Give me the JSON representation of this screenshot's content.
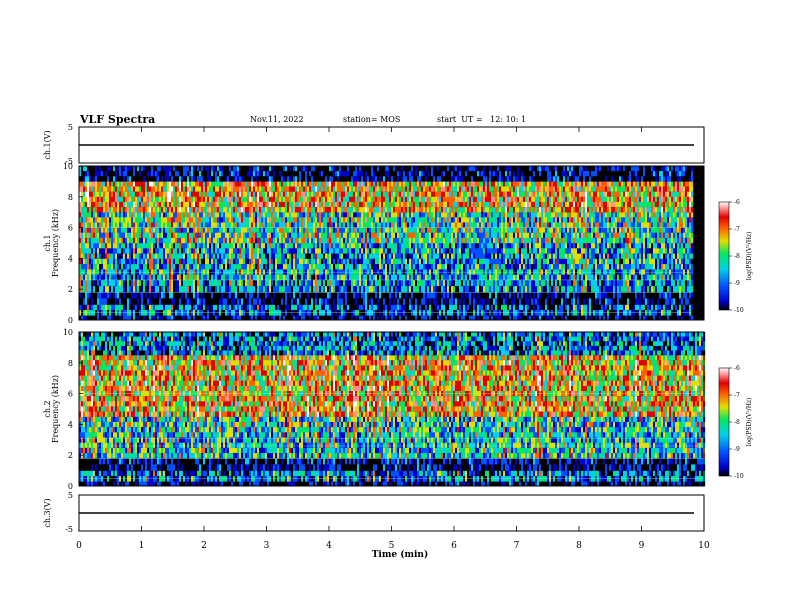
{
  "header": {
    "title": "VLF Spectra",
    "date": "Nov.11, 2022",
    "station": "station= MOS",
    "start_time": "start  UT =   12: 10: 1"
  },
  "chart_data": [
    {
      "type": "line",
      "panel": "ch1-waveform",
      "ylabel": "ch.1(V)",
      "ylim": [
        -5,
        5
      ],
      "yticks": [
        "5",
        "-5"
      ],
      "xlim": [
        0,
        10
      ],
      "series": [
        {
          "values": [
            0,
            0
          ]
        }
      ]
    },
    {
      "type": "heatmap",
      "panel": "ch1-spectrogram",
      "ylabel_line1": "ch.1",
      "ylabel_line2": "Frequency (kHz)",
      "ylim": [
        0,
        10
      ],
      "yticks": [
        "0",
        "2",
        "4",
        "6",
        "8",
        "10"
      ],
      "xlim": [
        0,
        10
      ],
      "note_data_extent_min": 9.8,
      "colorbar": {
        "label": "log(PSD)(V²/Hz)",
        "range": [
          -10,
          -6
        ],
        "ticks": [
          "-6",
          "-7",
          "-8",
          "-9",
          "-10"
        ]
      },
      "bands_khz": [
        {
          "range": [
            0.0,
            0.3
          ],
          "level": -10
        },
        {
          "range": [
            0.3,
            1.0
          ],
          "level": -9.3
        },
        {
          "range": [
            1.0,
            1.8
          ],
          "level": -9.9
        },
        {
          "range": [
            1.8,
            2.6
          ],
          "level": -9.0
        },
        {
          "range": [
            2.6,
            5.0
          ],
          "level": -8.8
        },
        {
          "range": [
            5.0,
            7.0
          ],
          "level": -8.4
        },
        {
          "range": [
            7.0,
            9.0
          ],
          "level": -7.6
        },
        {
          "range": [
            9.0,
            10.0
          ],
          "level": -9.9
        }
      ]
    },
    {
      "type": "heatmap",
      "panel": "ch2-spectrogram",
      "ylabel_line1": "ch.2",
      "ylabel_line2": "Frequency (kHz)",
      "ylim": [
        0,
        10
      ],
      "yticks": [
        "0",
        "2",
        "4",
        "6",
        "8",
        "10"
      ],
      "xlim": [
        0,
        10
      ],
      "colorbar": {
        "label": "log(PSD)(V²/Hz)",
        "range": [
          -10,
          -6
        ],
        "ticks": [
          "-6",
          "-7",
          "-8",
          "-9",
          "-10"
        ]
      },
      "bands_khz": [
        {
          "range": [
            0.0,
            0.3
          ],
          "level": -10
        },
        {
          "range": [
            0.3,
            1.0
          ],
          "level": -9.2
        },
        {
          "range": [
            1.0,
            1.8
          ],
          "level": -9.9
        },
        {
          "range": [
            1.8,
            4.5
          ],
          "level": -8.6
        },
        {
          "range": [
            4.5,
            8.5
          ],
          "level": -7.6
        },
        {
          "range": [
            8.5,
            10.0
          ],
          "level": -9.2
        }
      ]
    },
    {
      "type": "line",
      "panel": "ch3-waveform",
      "ylabel": "ch.3(V)",
      "ylim": [
        -5,
        5
      ],
      "yticks": [
        "5",
        "-5"
      ],
      "xlim": [
        0,
        10
      ],
      "series": [
        {
          "values": [
            0,
            0
          ]
        }
      ]
    }
  ],
  "xaxis": {
    "label": "Time  (min)",
    "ticks": [
      "0",
      "1",
      "2",
      "3",
      "4",
      "5",
      "6",
      "7",
      "8",
      "9",
      "10"
    ]
  },
  "colormap": [
    "#000000",
    "#0000c8",
    "#0050ff",
    "#00d0e8",
    "#00e860",
    "#e0e000",
    "#ff6000",
    "#e00000",
    "#ff9090",
    "#ffffff"
  ]
}
